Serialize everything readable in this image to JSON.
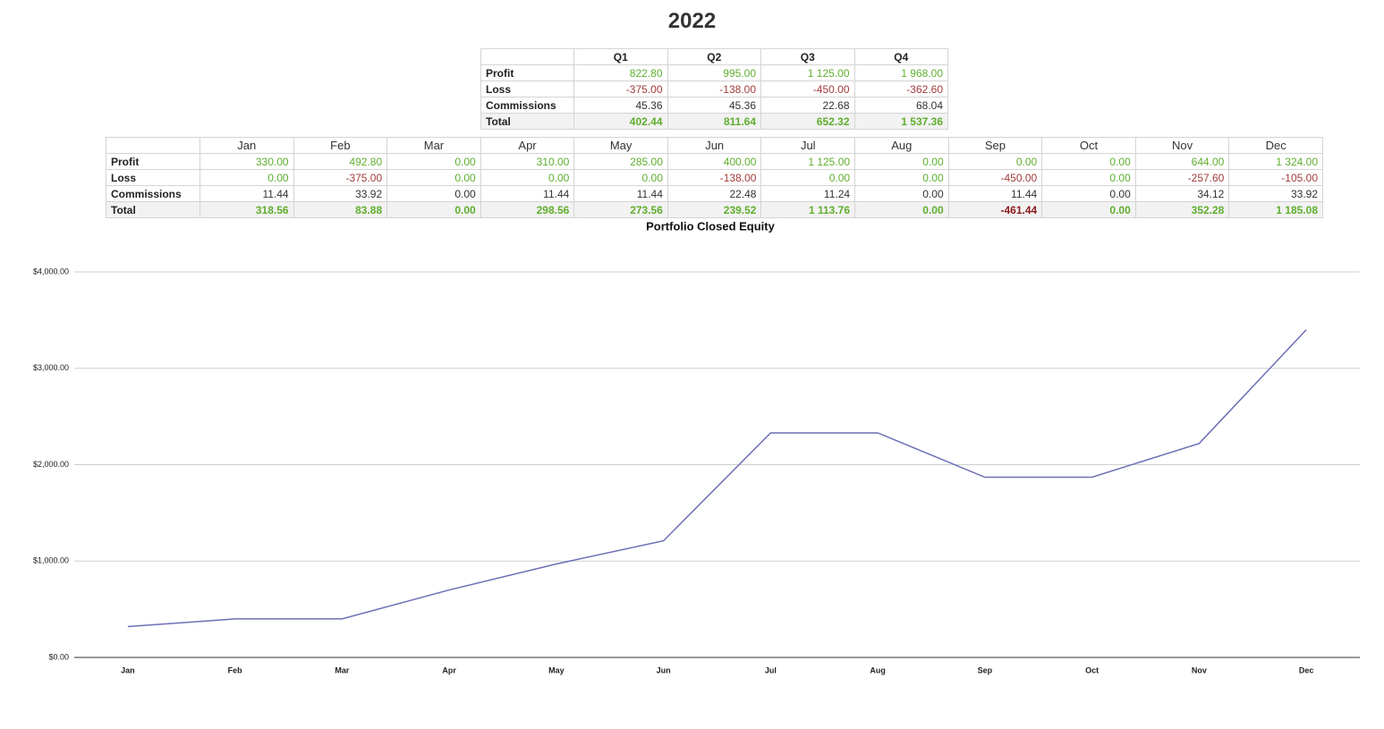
{
  "title": "2022",
  "quarterly_table": {
    "columns": [
      "Q1",
      "Q2",
      "Q3",
      "Q4"
    ],
    "rows": [
      {
        "label": "Profit",
        "cells": [
          "822.80",
          "995.00",
          "1 125.00",
          "1 968.00"
        ]
      },
      {
        "label": "Loss",
        "cells": [
          "-375.00",
          "-138.00",
          "-450.00",
          "-362.60"
        ]
      },
      {
        "label": "Commissions",
        "cells": [
          "45.36",
          "45.36",
          "22.68",
          "68.04"
        ]
      },
      {
        "label": "Total",
        "cells": [
          "402.44",
          "811.64",
          "652.32",
          "1 537.36"
        ]
      }
    ]
  },
  "monthly_table": {
    "columns": [
      "Jan",
      "Feb",
      "Mar",
      "Apr",
      "May",
      "Jun",
      "Jul",
      "Aug",
      "Sep",
      "Oct",
      "Nov",
      "Dec"
    ],
    "rows": [
      {
        "label": "Profit",
        "cells": [
          "330.00",
          "492.80",
          "0.00",
          "310.00",
          "285.00",
          "400.00",
          "1 125.00",
          "0.00",
          "0.00",
          "0.00",
          "644.00",
          "1 324.00"
        ]
      },
      {
        "label": "Loss",
        "cells": [
          "0.00",
          "-375.00",
          "0.00",
          "0.00",
          "0.00",
          "-138.00",
          "0.00",
          "0.00",
          "-450.00",
          "0.00",
          "-257.60",
          "-105.00"
        ]
      },
      {
        "label": "Commissions",
        "cells": [
          "11.44",
          "33.92",
          "0.00",
          "11.44",
          "11.44",
          "22.48",
          "11.24",
          "0.00",
          "11.44",
          "0.00",
          "34.12",
          "33.92"
        ]
      },
      {
        "label": "Total",
        "cells": [
          "318.56",
          "83.88",
          "0.00",
          "298.56",
          "273.56",
          "239.52",
          "1 113.76",
          "0.00",
          "-461.44",
          "0.00",
          "352.28",
          "1 185.08"
        ]
      }
    ]
  },
  "chart_data": {
    "type": "line",
    "title": "Portfolio Closed Equity",
    "categories": [
      "Jan",
      "Feb",
      "Mar",
      "Apr",
      "May",
      "Jun",
      "Jul",
      "Aug",
      "Sep",
      "Oct",
      "Nov",
      "Dec"
    ],
    "series": [
      {
        "color": "#6b6fb5",
        "values": [
          320,
          400,
          400,
          700,
          970,
          1210,
          2330,
          2330,
          1870,
          1870,
          2220,
          3400
        ]
      }
    ],
    "ylim": [
      0,
      4000
    ],
    "yticks": [
      {
        "value": 0,
        "label": "$0.00"
      },
      {
        "value": 1000,
        "label": "$1,000.00"
      },
      {
        "value": 2000,
        "label": "$2,000.00"
      },
      {
        "value": 3000,
        "label": "$3,000.00"
      },
      {
        "value": 4000,
        "label": "$4,000.00"
      }
    ],
    "grid": true
  }
}
